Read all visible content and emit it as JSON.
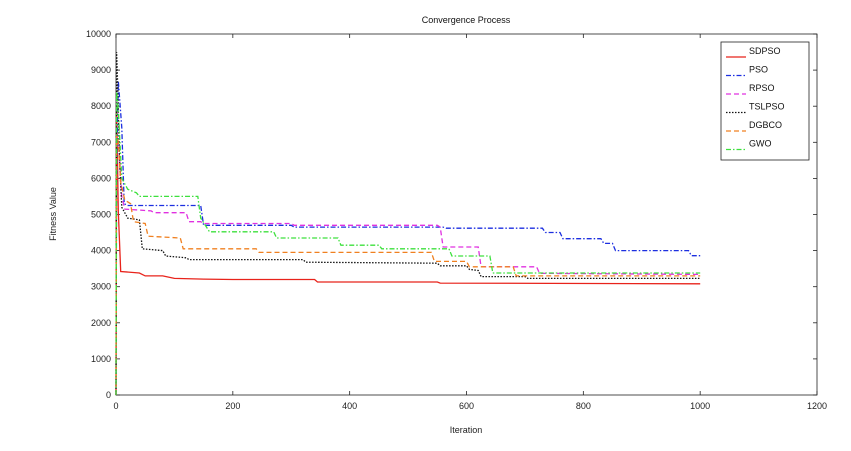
{
  "chart_data": {
    "type": "line",
    "title": "Convergence Process",
    "xlabel": "Iteration",
    "ylabel": "Fitness Value",
    "xlim": [
      0,
      1200
    ],
    "ylim": [
      0,
      10000
    ],
    "xticks": [
      0,
      200,
      400,
      600,
      800,
      1000,
      1200
    ],
    "yticks": [
      0,
      1000,
      2000,
      3000,
      4000,
      5000,
      6000,
      7000,
      8000,
      9000,
      10000
    ],
    "grid": false,
    "legend_position": "top-right",
    "series": [
      {
        "name": "SDPSO",
        "color": "#e8231b",
        "dash": "solid",
        "points": [
          [
            0,
            0
          ],
          [
            1,
            8000
          ],
          [
            4,
            5100
          ],
          [
            8,
            3420
          ],
          [
            40,
            3380
          ],
          [
            50,
            3300
          ],
          [
            80,
            3300
          ],
          [
            100,
            3230
          ],
          [
            150,
            3210
          ],
          [
            200,
            3200
          ],
          [
            340,
            3200
          ],
          [
            345,
            3130
          ],
          [
            550,
            3130
          ],
          [
            555,
            3100
          ],
          [
            1000,
            3080
          ]
        ]
      },
      {
        "name": "PSO",
        "color": "#1c2fe0",
        "dash": "dashdot",
        "points": [
          [
            0,
            0
          ],
          [
            1,
            6000
          ],
          [
            4,
            8700
          ],
          [
            10,
            7400
          ],
          [
            14,
            5300
          ],
          [
            20,
            5250
          ],
          [
            145,
            5250
          ],
          [
            150,
            4700
          ],
          [
            300,
            4700
          ],
          [
            305,
            4650
          ],
          [
            560,
            4650
          ],
          [
            565,
            4620
          ],
          [
            730,
            4620
          ],
          [
            735,
            4500
          ],
          [
            760,
            4500
          ],
          [
            765,
            4330
          ],
          [
            830,
            4330
          ],
          [
            835,
            4200
          ],
          [
            850,
            4200
          ],
          [
            855,
            4000
          ],
          [
            980,
            4000
          ],
          [
            985,
            3860
          ],
          [
            1000,
            3860
          ]
        ]
      },
      {
        "name": "RPSO",
        "color": "#e030e0",
        "dash": "dash",
        "points": [
          [
            0,
            0
          ],
          [
            1,
            7000
          ],
          [
            5,
            6900
          ],
          [
            10,
            5500
          ],
          [
            15,
            5150
          ],
          [
            60,
            5100
          ],
          [
            65,
            5050
          ],
          [
            120,
            5050
          ],
          [
            125,
            4800
          ],
          [
            145,
            4800
          ],
          [
            150,
            4750
          ],
          [
            300,
            4750
          ],
          [
            305,
            4700
          ],
          [
            550,
            4700
          ],
          [
            555,
            4650
          ],
          [
            560,
            4100
          ],
          [
            620,
            4100
          ],
          [
            625,
            3550
          ],
          [
            720,
            3550
          ],
          [
            725,
            3370
          ],
          [
            1000,
            3340
          ]
        ]
      },
      {
        "name": "TSLPSO",
        "color": "#111111",
        "dash": "dot",
        "points": [
          [
            0,
            0
          ],
          [
            1,
            9500
          ],
          [
            3,
            8500
          ],
          [
            6,
            6500
          ],
          [
            10,
            5200
          ],
          [
            20,
            4900
          ],
          [
            40,
            4850
          ],
          [
            45,
            4050
          ],
          [
            80,
            4000
          ],
          [
            85,
            3850
          ],
          [
            120,
            3800
          ],
          [
            125,
            3750
          ],
          [
            320,
            3750
          ],
          [
            325,
            3680
          ],
          [
            550,
            3650
          ],
          [
            555,
            3580
          ],
          [
            600,
            3580
          ],
          [
            605,
            3480
          ],
          [
            620,
            3450
          ],
          [
            625,
            3280
          ],
          [
            700,
            3280
          ],
          [
            705,
            3230
          ],
          [
            1000,
            3230
          ]
        ]
      },
      {
        "name": "DGBCO",
        "color": "#f08020",
        "dash": "dash",
        "points": [
          [
            0,
            0
          ],
          [
            1,
            7200
          ],
          [
            4,
            7000
          ],
          [
            8,
            5900
          ],
          [
            15,
            5400
          ],
          [
            25,
            5300
          ],
          [
            30,
            4800
          ],
          [
            50,
            4750
          ],
          [
            55,
            4400
          ],
          [
            110,
            4350
          ],
          [
            115,
            4050
          ],
          [
            240,
            4050
          ],
          [
            245,
            3950
          ],
          [
            540,
            3950
          ],
          [
            545,
            3700
          ],
          [
            600,
            3700
          ],
          [
            605,
            3550
          ],
          [
            680,
            3550
          ],
          [
            685,
            3300
          ],
          [
            1000,
            3300
          ]
        ]
      },
      {
        "name": "GWO",
        "color": "#3de03d",
        "dash": "dashdot",
        "points": [
          [
            0,
            0
          ],
          [
            1,
            8400
          ],
          [
            4,
            7900
          ],
          [
            10,
            6000
          ],
          [
            20,
            5700
          ],
          [
            35,
            5600
          ],
          [
            40,
            5500
          ],
          [
            140,
            5500
          ],
          [
            145,
            4900
          ],
          [
            155,
            4650
          ],
          [
            160,
            4520
          ],
          [
            270,
            4520
          ],
          [
            275,
            4350
          ],
          [
            380,
            4350
          ],
          [
            385,
            4150
          ],
          [
            450,
            4150
          ],
          [
            455,
            4050
          ],
          [
            570,
            4050
          ],
          [
            575,
            3850
          ],
          [
            640,
            3850
          ],
          [
            645,
            3380
          ],
          [
            1000,
            3380
          ]
        ]
      }
    ]
  }
}
